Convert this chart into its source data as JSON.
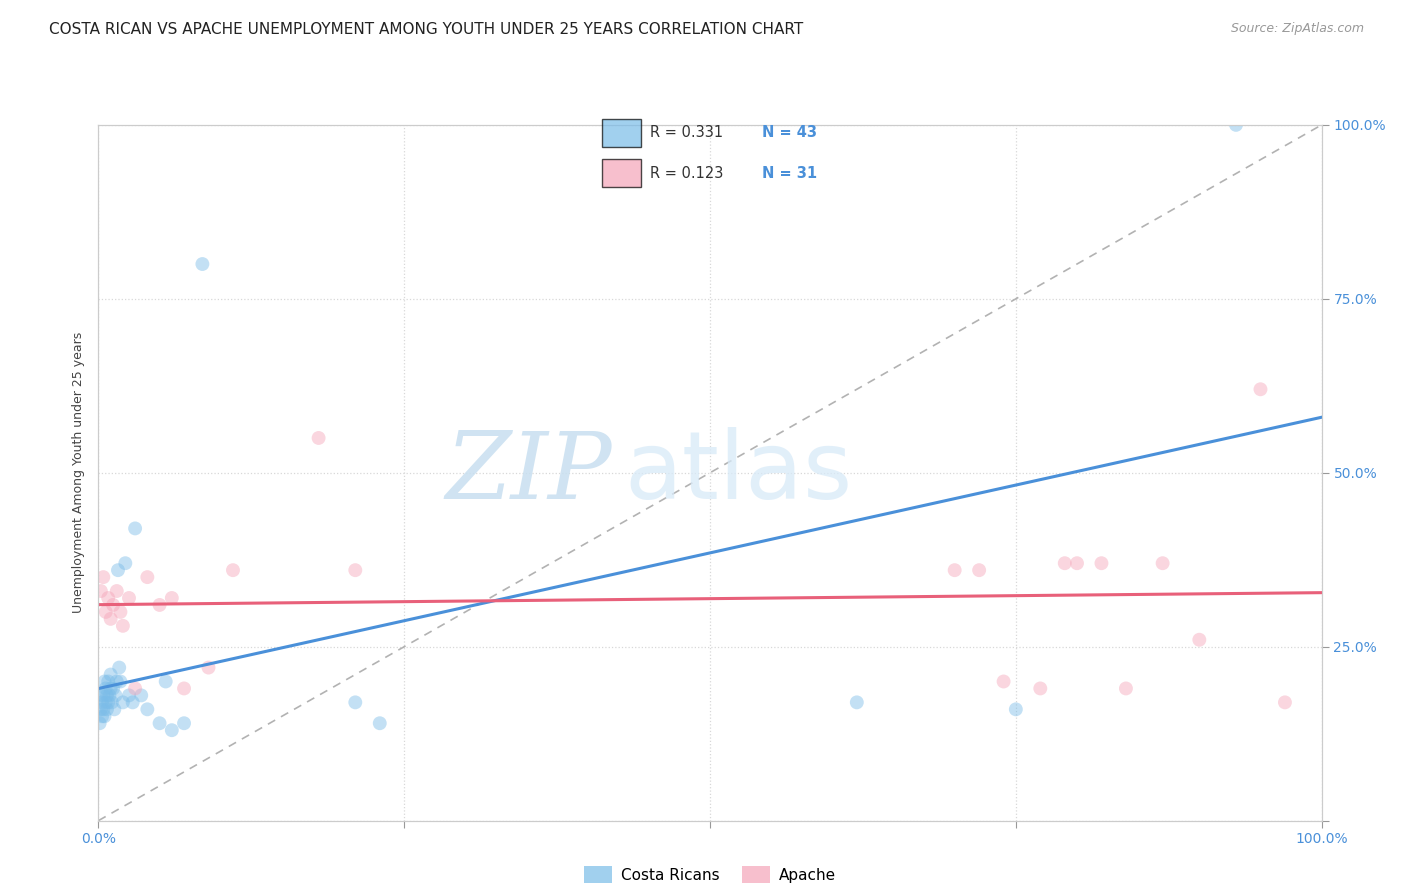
{
  "title": "COSTA RICAN VS APACHE UNEMPLOYMENT AMONG YOUTH UNDER 25 YEARS CORRELATION CHART",
  "source": "Source: ZipAtlas.com",
  "ylabel": "Unemployment Among Youth under 25 years",
  "xlim": [
    0,
    1
  ],
  "ylim": [
    0,
    1
  ],
  "xticks": [
    0,
    0.25,
    0.5,
    0.75,
    1.0
  ],
  "xticklabels_shown": [
    "0.0%",
    "100.0%"
  ],
  "yticks": [
    0,
    0.25,
    0.5,
    0.75,
    1.0
  ],
  "yticklabels_right": [
    "",
    "25.0%",
    "50.0%",
    "75.0%",
    "100.0%"
  ],
  "legend_labels": [
    "Costa Ricans",
    "Apache"
  ],
  "legend_R": [
    0.331,
    0.123
  ],
  "legend_N": [
    43,
    31
  ],
  "blue_color": "#7abce8",
  "pink_color": "#f4a4b8",
  "blue_line_color": "#4a90d9",
  "pink_line_color": "#e8607a",
  "watermark_zip": "ZIP",
  "watermark_atlas": "atlas",
  "background_color": "#ffffff",
  "grid_color": "#d8d8d8",
  "costa_rican_x": [
    0.001,
    0.002,
    0.002,
    0.003,
    0.003,
    0.004,
    0.004,
    0.005,
    0.005,
    0.006,
    0.006,
    0.007,
    0.007,
    0.008,
    0.008,
    0.009,
    0.01,
    0.01,
    0.011,
    0.012,
    0.013,
    0.014,
    0.015,
    0.016,
    0.017,
    0.018,
    0.02,
    0.022,
    0.025,
    0.028,
    0.03,
    0.035,
    0.04,
    0.05,
    0.055,
    0.06,
    0.07,
    0.085,
    0.21,
    0.23,
    0.62,
    0.75,
    0.93
  ],
  "costa_rican_y": [
    0.14,
    0.16,
    0.18,
    0.15,
    0.17,
    0.16,
    0.18,
    0.15,
    0.2,
    0.17,
    0.19,
    0.16,
    0.18,
    0.17,
    0.2,
    0.18,
    0.19,
    0.21,
    0.17,
    0.19,
    0.16,
    0.18,
    0.2,
    0.36,
    0.22,
    0.2,
    0.17,
    0.37,
    0.18,
    0.17,
    0.42,
    0.18,
    0.16,
    0.14,
    0.2,
    0.13,
    0.14,
    0.8,
    0.17,
    0.14,
    0.17,
    0.16,
    1.0
  ],
  "apache_x": [
    0.002,
    0.004,
    0.006,
    0.008,
    0.01,
    0.012,
    0.015,
    0.018,
    0.02,
    0.025,
    0.03,
    0.04,
    0.05,
    0.06,
    0.07,
    0.09,
    0.11,
    0.18,
    0.21,
    0.7,
    0.72,
    0.74,
    0.77,
    0.79,
    0.8,
    0.82,
    0.84,
    0.87,
    0.9,
    0.95,
    0.97
  ],
  "apache_y": [
    0.33,
    0.35,
    0.3,
    0.32,
    0.29,
    0.31,
    0.33,
    0.3,
    0.28,
    0.32,
    0.19,
    0.35,
    0.31,
    0.32,
    0.19,
    0.22,
    0.36,
    0.55,
    0.36,
    0.36,
    0.36,
    0.2,
    0.19,
    0.37,
    0.37,
    0.37,
    0.19,
    0.37,
    0.26,
    0.62,
    0.17
  ],
  "title_fontsize": 11,
  "axis_label_fontsize": 9,
  "tick_fontsize": 10,
  "source_fontsize": 9,
  "dot_size": 100,
  "dot_alpha": 0.45,
  "line_width": 2.2,
  "blue_line_x_end": 0.3
}
